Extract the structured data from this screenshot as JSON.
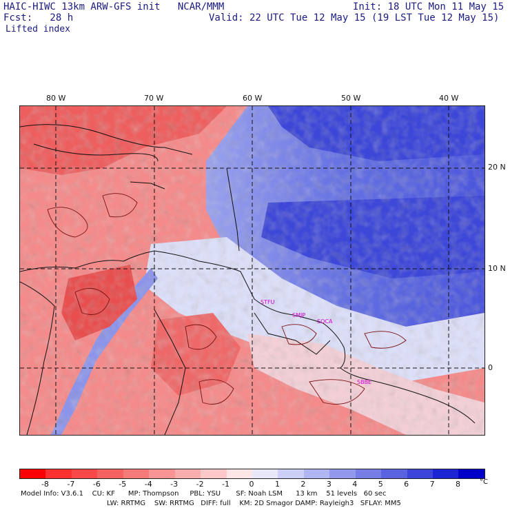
{
  "header": {
    "title_left": "HAIC-HIWC 13km ARW-GFS init   NCAR/MMM",
    "init": "Init: 18 UTC Mon 11 May 15",
    "fcst": "Fcst:   28 h",
    "valid": "Valid: 22 UTC Tue 12 May 15 (19 LST Tue 12 May 15)",
    "field": "Lifted index"
  },
  "map": {
    "lon_ticks": [
      "80 W",
      "70 W",
      "60 W",
      "50 W",
      "40 W"
    ],
    "lat_ticks": [
      "20 N",
      "10 N",
      "0"
    ],
    "stations": [
      "STFU",
      "SMJP",
      "SOCA",
      "SBBE"
    ]
  },
  "colorbar": {
    "labels": [
      "-8",
      "-7",
      "-6",
      "-5",
      "-4",
      "-3",
      "-2",
      "-1",
      "0",
      "1",
      "2",
      "3",
      "4",
      "5",
      "6",
      "7",
      "8"
    ],
    "unit": "°C",
    "colors": [
      "#ff0000",
      "#ff3030",
      "#f84848",
      "#f46262",
      "#f57a7a",
      "#f89494",
      "#faaeae",
      "#fcc8c8",
      "#fee6e6",
      "#e8e8fa",
      "#cdd0f6",
      "#b0b6f2",
      "#9299ec",
      "#767ee6",
      "#5a62e0",
      "#3c44da",
      "#1c24d4",
      "#0000c8"
    ]
  },
  "footer": {
    "line1": "Model Info: V3.6.1    CU: KF      MP: Thompson     PBL: YSU       SF: Noah LSM      13 km    51 levels   60 sec",
    "line2": "LW: RRTMG    SW: RRTMG   DIFF: full    KM: 2D Smagor DAMP: Rayleigh3   SFLAY: MM5"
  }
}
